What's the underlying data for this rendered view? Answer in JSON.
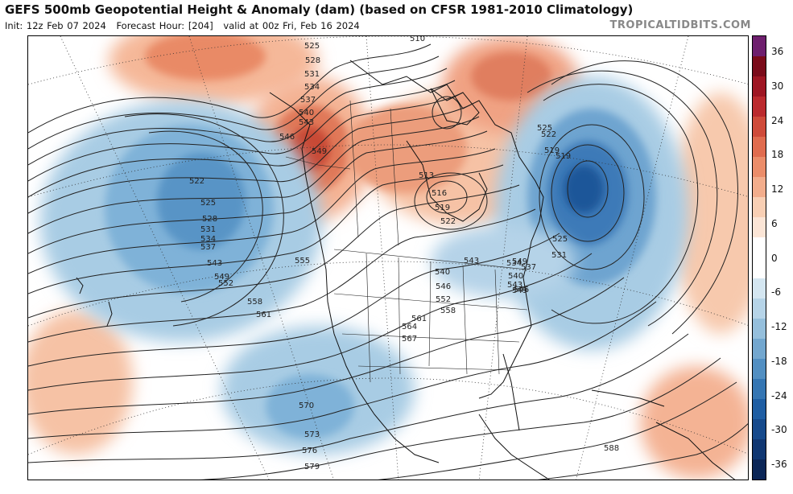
{
  "header": {
    "title": "GEFS 500mb Geopotential Height & Anomaly (dam) (based on CFSR 1981-2010 Climatology)",
    "init": "Init: 12z Feb 07 2024",
    "forecast_hour": "Forecast Hour: [204]",
    "valid": "valid at 00z Fri, Feb 16 2024",
    "brand": "TROPICALTIDBITS.COM"
  },
  "colorbar": {
    "ticks": [
      "36",
      "30",
      "24",
      "18",
      "12",
      "6",
      "0",
      "-6",
      "-12",
      "-18",
      "-24",
      "-30",
      "-36"
    ],
    "colors": [
      "#6e1f6e",
      "#7a0b1a",
      "#9e1623",
      "#bb2a2e",
      "#cf4b3a",
      "#e06c4f",
      "#eb8d6a",
      "#f2ad8c",
      "#f8cfb4",
      "#fbe5d6",
      "#ffffff",
      "#ffffff",
      "#d4e6f1",
      "#b6d4e8",
      "#95bfdc",
      "#73a7cf",
      "#528fc2",
      "#3576b3",
      "#1f5ea3",
      "#164a8c",
      "#103772",
      "#0b2657"
    ]
  },
  "contour_labels": [
    {
      "text": "525"
    },
    {
      "text": "528"
    },
    {
      "text": "531"
    },
    {
      "text": "534"
    },
    {
      "text": "537"
    },
    {
      "text": "540"
    },
    {
      "text": "543"
    },
    {
      "text": "546"
    },
    {
      "text": "549"
    },
    {
      "text": "519"
    },
    {
      "text": "522"
    },
    {
      "text": "525"
    },
    {
      "text": "528"
    },
    {
      "text": "531"
    },
    {
      "text": "534"
    },
    {
      "text": "537"
    },
    {
      "text": "543"
    },
    {
      "text": "549"
    },
    {
      "text": "552"
    },
    {
      "text": "555"
    },
    {
      "text": "558"
    },
    {
      "text": "561"
    },
    {
      "text": "564"
    },
    {
      "text": "567"
    },
    {
      "text": "570"
    },
    {
      "text": "573"
    },
    {
      "text": "576"
    },
    {
      "text": "579"
    },
    {
      "text": "513"
    },
    {
      "text": "516"
    },
    {
      "text": "519"
    },
    {
      "text": "522"
    },
    {
      "text": "525"
    },
    {
      "text": "522"
    },
    {
      "text": "519"
    },
    {
      "text": "540"
    },
    {
      "text": "543"
    },
    {
      "text": "546"
    },
    {
      "text": "549"
    },
    {
      "text": "552"
    },
    {
      "text": "558"
    },
    {
      "text": "561"
    },
    {
      "text": "525"
    },
    {
      "text": "531"
    },
    {
      "text": "534"
    },
    {
      "text": "537"
    },
    {
      "text": "540"
    },
    {
      "text": "543"
    },
    {
      "text": "546"
    },
    {
      "text": "549"
    },
    {
      "text": "588"
    },
    {
      "text": "510"
    }
  ]
}
